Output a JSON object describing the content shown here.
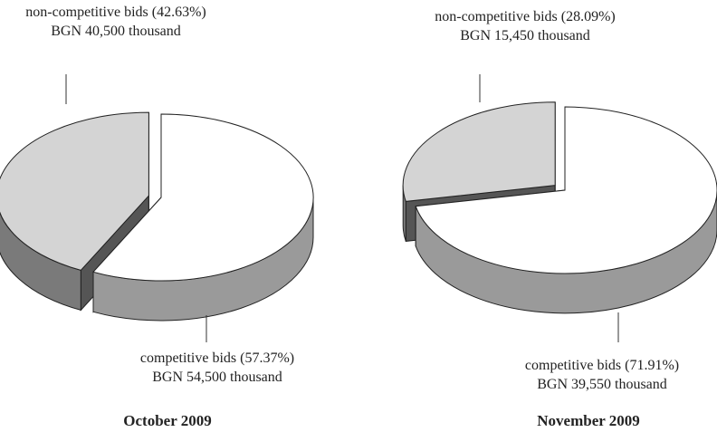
{
  "chart_data": [
    {
      "type": "pie",
      "title": "October 2009",
      "categories": [
        "non-competitive bids",
        "competitive bids"
      ],
      "values": [
        42.63,
        57.37
      ],
      "value_labels": [
        "(42.63%)",
        "(57.37%)"
      ],
      "amounts": [
        40500,
        54500
      ],
      "amount_labels": [
        "BGN 40,500 thousand",
        "BGN 54,500 thousand"
      ],
      "colors": [
        "#d4d4d4",
        "#ffffff"
      ]
    },
    {
      "type": "pie",
      "title": "November 2009",
      "categories": [
        "non-competitive bids",
        "competitive bids"
      ],
      "values": [
        28.09,
        71.91
      ],
      "value_labels": [
        "(28.09%)",
        "(71.91%)"
      ],
      "amounts": [
        15450,
        39550
      ],
      "amount_labels": [
        "BGN 15,450 thousand",
        "BGN 39,550 thousand"
      ],
      "colors": [
        "#d4d4d4",
        "#ffffff"
      ]
    }
  ]
}
